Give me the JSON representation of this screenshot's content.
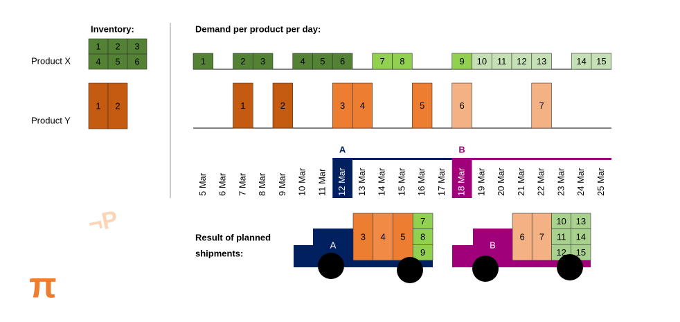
{
  "logo": "π",
  "watermark": "¬P",
  "inventory": {
    "title": "Inventory:",
    "products": [
      {
        "label": "Product X",
        "color": "#548235",
        "items": [
          "1",
          "2",
          "3",
          "4",
          "5",
          "6"
        ]
      },
      {
        "label": "Product Y",
        "color": "#c55a11",
        "items": [
          "1",
          "2"
        ]
      }
    ]
  },
  "demand": {
    "title": "Demand per product per day:",
    "days": [
      "5 Mar",
      "6 Mar",
      "7 Mar",
      "8 Mar",
      "9 Mar",
      "10 Mar",
      "11 Mar",
      "12 Mar",
      "13 Mar",
      "14 Mar",
      "15 Mar",
      "16 Mar",
      "17 Mar",
      "18 Mar",
      "19 Mar",
      "20 Mar",
      "21 Mar",
      "22 Mar",
      "23 Mar",
      "24 Mar",
      "25 Mar"
    ],
    "product_x": [
      {
        "unit": "1",
        "day": "5 Mar",
        "color": "#548235"
      },
      {
        "unit": "2",
        "day": "7 Mar",
        "color": "#548235"
      },
      {
        "unit": "3",
        "day": "8 Mar",
        "color": "#548235"
      },
      {
        "unit": "4",
        "day": "10 Mar",
        "color": "#548235"
      },
      {
        "unit": "5",
        "day": "11 Mar",
        "color": "#548235"
      },
      {
        "unit": "6",
        "day": "12 Mar",
        "color": "#548235"
      },
      {
        "unit": "7",
        "day": "14 Mar",
        "color": "#92d050"
      },
      {
        "unit": "8",
        "day": "15 Mar",
        "color": "#92d050"
      },
      {
        "unit": "9",
        "day": "18 Mar",
        "color": "#92d050"
      },
      {
        "unit": "10",
        "day": "19 Mar",
        "color": "#c5e0b4"
      },
      {
        "unit": "11",
        "day": "20 Mar",
        "color": "#c5e0b4"
      },
      {
        "unit": "12",
        "day": "21 Mar",
        "color": "#c5e0b4"
      },
      {
        "unit": "13",
        "day": "22 Mar",
        "color": "#c5e0b4"
      },
      {
        "unit": "14",
        "day": "24 Mar",
        "color": "#c5e0b4"
      },
      {
        "unit": "15",
        "day": "25 Mar",
        "color": "#c5e0b4"
      }
    ],
    "product_y": [
      {
        "unit": "1",
        "day": "7 Mar",
        "color": "#c55a11"
      },
      {
        "unit": "2",
        "day": "9 Mar",
        "color": "#c55a11"
      },
      {
        "unit": "3",
        "day": "12 Mar",
        "color": "#ed7d31"
      },
      {
        "unit": "4",
        "day": "13 Mar",
        "color": "#ed7d31"
      },
      {
        "unit": "5",
        "day": "16 Mar",
        "color": "#ed7d31"
      },
      {
        "unit": "6",
        "day": "18 Mar",
        "color": "#f4b183"
      },
      {
        "unit": "7",
        "day": "22 Mar",
        "color": "#f4b183"
      }
    ],
    "shipments": [
      {
        "label": "A",
        "day": "12 Mar",
        "color": "#002060"
      },
      {
        "label": "B",
        "day": "18 Mar",
        "color": "#a0007a"
      }
    ]
  },
  "result": {
    "title": [
      "Result of planned",
      "shipments:"
    ],
    "trucks": [
      {
        "label": "A",
        "color": "#002060",
        "cargo": [
          {
            "color": "#ed7d31",
            "cells": [
              "3"
            ]
          },
          {
            "color": "#f08a45",
            "cells": [
              "4"
            ]
          },
          {
            "color": "#ed7d31",
            "cells": [
              "5"
            ]
          },
          {
            "color": "#92d050",
            "cells": [
              "7",
              "8",
              "9"
            ]
          }
        ]
      },
      {
        "label": "B",
        "color": "#a0007a",
        "cargo": [
          {
            "color": "#f4b183",
            "cells": [
              "6"
            ]
          },
          {
            "color": "#f4b183",
            "cells": [
              "7"
            ]
          },
          {
            "color": "#a9d18e",
            "cells": [
              "10",
              "11",
              "12"
            ]
          },
          {
            "color": "#a9d18e",
            "cells": [
              "13",
              "14",
              "15"
            ]
          }
        ]
      }
    ]
  }
}
